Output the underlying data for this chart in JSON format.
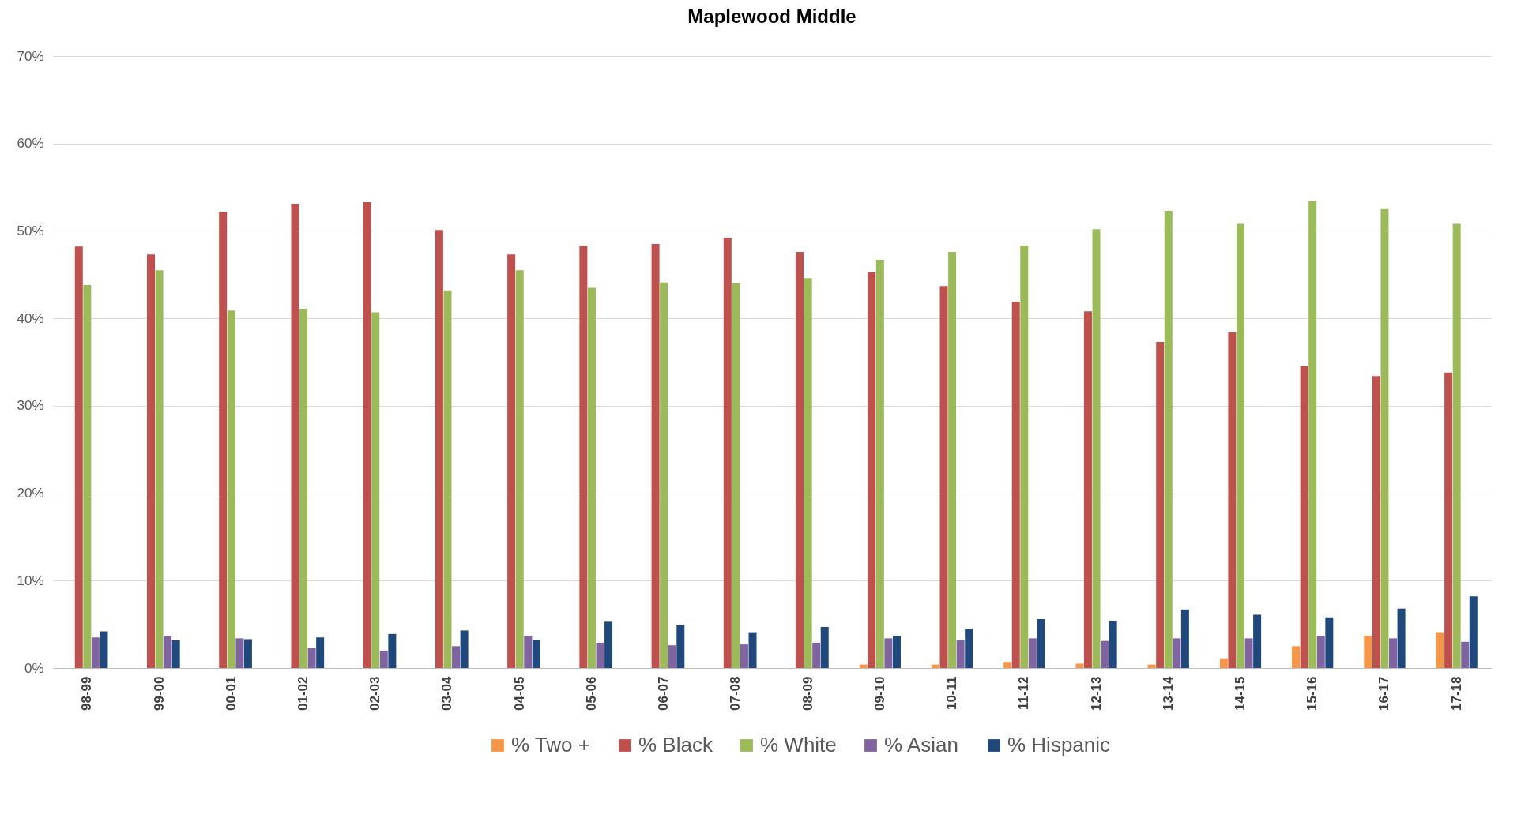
{
  "chart_data": {
    "type": "bar",
    "title": "Maplewood Middle",
    "categories": [
      "98-99",
      "99-00",
      "00-01",
      "01-02",
      "02-03",
      "03-04",
      "04-05",
      "05-06",
      "06-07",
      "07-08",
      "08-09",
      "09-10",
      "10-11",
      "11-12",
      "12-13",
      "13-14",
      "14-15",
      "15-16",
      "16-17",
      "17-18"
    ],
    "series": [
      {
        "name": "% Two +",
        "color": "#f79646",
        "values": [
          null,
          null,
          null,
          null,
          null,
          null,
          null,
          null,
          null,
          null,
          null,
          0.4,
          0.4,
          0.7,
          0.5,
          0.4,
          1.1,
          2.5,
          3.7,
          4.1
        ]
      },
      {
        "name": "% Black",
        "color": "#c0504d",
        "values": [
          48.2,
          47.3,
          52.2,
          53.1,
          53.3,
          50.1,
          47.3,
          48.3,
          48.5,
          49.2,
          47.6,
          45.3,
          43.7,
          41.9,
          40.8,
          37.3,
          38.4,
          34.5,
          33.4,
          33.8
        ]
      },
      {
        "name": "% White",
        "color": "#9bbb59",
        "values": [
          43.8,
          45.5,
          40.9,
          41.1,
          40.7,
          43.2,
          45.5,
          43.5,
          44.1,
          44.0,
          44.6,
          46.7,
          47.6,
          48.3,
          50.2,
          52.3,
          50.8,
          53.4,
          52.5,
          50.8
        ]
      },
      {
        "name": "% Asian",
        "color": "#8064a2",
        "values": [
          3.5,
          3.7,
          3.4,
          2.3,
          2.0,
          2.5,
          3.7,
          2.9,
          2.6,
          2.7,
          2.9,
          3.4,
          3.2,
          3.4,
          3.1,
          3.4,
          3.4,
          3.7,
          3.4,
          3.0
        ]
      },
      {
        "name": "% Hispanic",
        "color": "#1f497d",
        "values": [
          4.2,
          3.2,
          3.3,
          3.5,
          3.9,
          4.3,
          3.2,
          5.3,
          4.9,
          4.1,
          4.7,
          3.7,
          4.5,
          5.6,
          5.4,
          6.7,
          6.1,
          5.8,
          6.8,
          8.2
        ]
      }
    ],
    "ylim": [
      0,
      70
    ],
    "yticks": [
      {
        "value": 0,
        "label": "0%"
      },
      {
        "value": 10,
        "label": "10%"
      },
      {
        "value": 20,
        "label": "20%"
      },
      {
        "value": 30,
        "label": "30%"
      },
      {
        "value": 40,
        "label": "40%"
      },
      {
        "value": 50,
        "label": "50%"
      },
      {
        "value": 60,
        "label": "60%"
      },
      {
        "value": 70,
        "label": "70%"
      }
    ],
    "grid": "y",
    "legend": "bottom"
  }
}
